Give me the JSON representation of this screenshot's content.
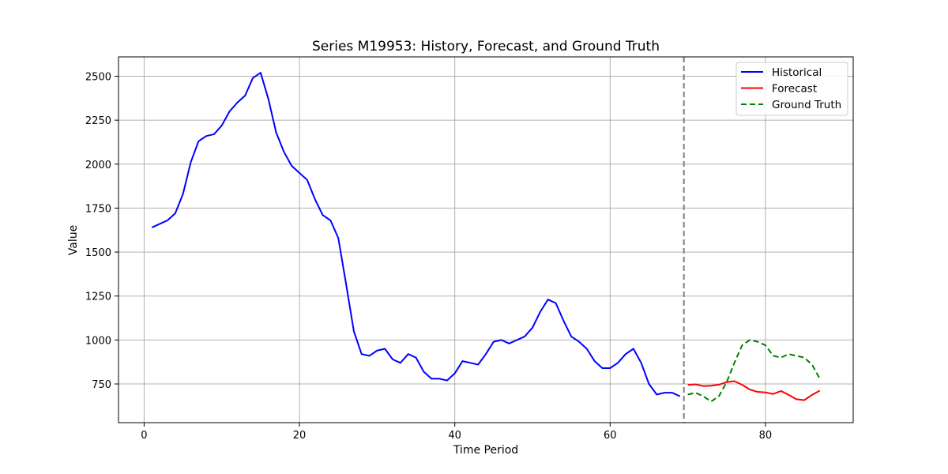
{
  "chart_data": {
    "type": "line",
    "title": "Series M19953: History, Forecast, and Ground Truth",
    "xlabel": "Time Period",
    "ylabel": "Value",
    "xlim": [
      -3.3,
      91.3
    ],
    "ylim": [
      530,
      2610
    ],
    "xticks": [
      0,
      20,
      40,
      60,
      80
    ],
    "yticks": [
      750,
      1000,
      1250,
      1500,
      1750,
      2000,
      2250,
      2500
    ],
    "grid": true,
    "legend_position": "top-right",
    "forecast_start_line": {
      "x": 69.5,
      "style": "dashed",
      "color": "#808080"
    },
    "series": [
      {
        "name": "Historical",
        "color": "#0000ff",
        "style": "solid",
        "x": [
          1,
          2,
          3,
          4,
          5,
          6,
          7,
          8,
          9,
          10,
          11,
          12,
          13,
          14,
          15,
          16,
          17,
          18,
          19,
          20,
          21,
          22,
          23,
          24,
          25,
          26,
          27,
          28,
          29,
          30,
          31,
          32,
          33,
          34,
          35,
          36,
          37,
          38,
          39,
          40,
          41,
          42,
          43,
          44,
          45,
          46,
          47,
          48,
          49,
          50,
          51,
          52,
          53,
          54,
          55,
          56,
          57,
          58,
          59,
          60,
          61,
          62,
          63,
          64,
          65,
          66,
          67,
          68,
          69
        ],
        "values": [
          1640,
          1660,
          1680,
          1720,
          1830,
          2010,
          2130,
          2160,
          2170,
          2220,
          2300,
          2350,
          2390,
          2490,
          2520,
          2370,
          2180,
          2070,
          1990,
          1950,
          1910,
          1800,
          1710,
          1680,
          1580,
          1320,
          1050,
          920,
          910,
          940,
          950,
          890,
          870,
          920,
          900,
          820,
          780,
          780,
          770,
          810,
          880,
          870,
          860,
          920,
          990,
          1000,
          980,
          1000,
          1020,
          1070,
          1160,
          1230,
          1210,
          1110,
          1020,
          990,
          950,
          880,
          840,
          840,
          870,
          920,
          950,
          870,
          750,
          690,
          700,
          700,
          680
        ]
      },
      {
        "name": "Forecast",
        "color": "#ff0000",
        "style": "solid",
        "x": [
          70,
          71,
          72,
          73,
          74,
          75,
          76,
          77,
          78,
          79,
          80,
          81,
          82,
          83,
          84,
          85,
          86,
          87
        ],
        "values": [
          745,
          748,
          738,
          740,
          746,
          760,
          766,
          745,
          718,
          705,
          702,
          693,
          710,
          688,
          663,
          658,
          688,
          712
        ]
      },
      {
        "name": "Ground Truth",
        "color": "#008000",
        "style": "dashed",
        "x": [
          70,
          71,
          72,
          73,
          74,
          75,
          76,
          77,
          78,
          79,
          80,
          81,
          82,
          83,
          84,
          85,
          86,
          87
        ],
        "values": [
          690,
          700,
          680,
          650,
          680,
          760,
          870,
          970,
          1000,
          990,
          970,
          910,
          900,
          920,
          910,
          900,
          860,
          780
        ]
      }
    ]
  }
}
